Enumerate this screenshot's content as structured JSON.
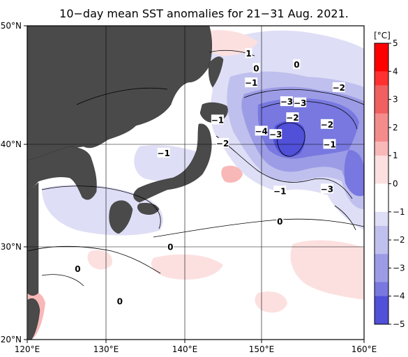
{
  "title": "10−day mean SST anomalies for 21−31 Aug. 2021.",
  "colorbar": {
    "unit": "[°C]",
    "ticks": [
      "5",
      "4",
      "3",
      "2",
      "1",
      "0",
      "−1",
      "−2",
      "−3",
      "−4",
      "−5"
    ],
    "min": -5,
    "max": 5,
    "colors_warm": [
      "#ff0000",
      "#ff3030",
      "#f06060",
      "#f48c8c",
      "#f8b8b8",
      "#fce0e0",
      "#ffffff"
    ],
    "colors_cold": [
      "#ffffff",
      "#dedef6",
      "#c0c0ee",
      "#9c9ce6",
      "#7878e0",
      "#5050d8",
      "#1010e0"
    ]
  },
  "lat_labels": [
    "50°N",
    "40°N",
    "30°N",
    "20°N"
  ],
  "lon_labels": [
    "120°E",
    "130°E",
    "140°E",
    "150°E",
    "160°E"
  ],
  "contour_labels": [
    {
      "text": "1",
      "lon": 146.3,
      "lat": 47.8
    },
    {
      "text": "0",
      "lon": 147.2,
      "lat": 46.6
    },
    {
      "text": "0",
      "lon": 152.0,
      "lat": 46.9
    },
    {
      "text": "−1",
      "lon": 146.6,
      "lat": 45.4
    },
    {
      "text": "−2",
      "lon": 157.0,
      "lat": 45.0
    },
    {
      "text": "−3",
      "lon": 150.8,
      "lat": 43.8
    },
    {
      "text": "−3",
      "lon": 152.4,
      "lat": 43.7
    },
    {
      "text": "−1",
      "lon": 142.6,
      "lat": 42.2
    },
    {
      "text": "−2",
      "lon": 151.5,
      "lat": 42.4
    },
    {
      "text": "−2",
      "lon": 155.6,
      "lat": 41.8
    },
    {
      "text": "−4",
      "lon": 147.8,
      "lat": 41.2
    },
    {
      "text": "−3",
      "lon": 149.5,
      "lat": 40.9
    },
    {
      "text": "−2",
      "lon": 143.2,
      "lat": 40.1
    },
    {
      "text": "−1",
      "lon": 155.9,
      "lat": 40.0
    },
    {
      "text": "−1",
      "lon": 136.2,
      "lat": 39.2
    },
    {
      "text": "−1",
      "lon": 150.0,
      "lat": 35.6
    },
    {
      "text": "−3",
      "lon": 155.6,
      "lat": 35.8
    },
    {
      "text": "0",
      "lon": 150.0,
      "lat": 32.6
    },
    {
      "text": "0",
      "lon": 137.0,
      "lat": 30.0
    },
    {
      "text": "0",
      "lon": 126.0,
      "lat": 27.7
    },
    {
      "text": "0",
      "lon": 131.0,
      "lat": 24.2
    }
  ]
}
